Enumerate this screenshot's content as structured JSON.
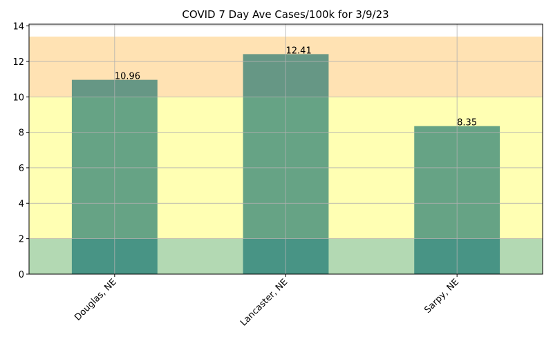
{
  "chart_data": {
    "type": "bar",
    "title": "COVID 7 Day Ave Cases/100k for 3/9/23",
    "xlabel": "",
    "ylabel": "",
    "categories": [
      "Douglas, NE",
      "Lancaster, NE",
      "Sarpy, NE"
    ],
    "values": [
      10.96,
      12.41,
      8.35
    ],
    "data_labels": [
      "10.96",
      "12.41",
      "8.35"
    ],
    "ylim": [
      0,
      14.1
    ],
    "yticks": [
      0,
      2,
      4,
      6,
      8,
      10,
      12,
      14
    ],
    "grid": true,
    "background_bands": [
      {
        "from": 0,
        "to": 2,
        "color": "#b3d9b3"
      },
      {
        "from": 2,
        "to": 10,
        "color": "#ffffb3"
      },
      {
        "from": 10,
        "to": 13.4,
        "color": "#ffe2b3"
      }
    ],
    "bar_color": "#006666",
    "bar_opacity": 0.6
  }
}
